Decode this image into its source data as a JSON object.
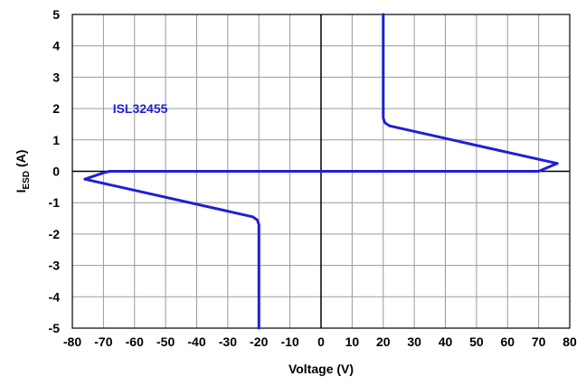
{
  "chart_data": {
    "type": "line",
    "xlabel": "Voltage (V)",
    "ylabel": {
      "main": "I",
      "sub": "ESD",
      "unit": " (A)"
    },
    "xlim": [
      -80,
      80
    ],
    "ylim": [
      -5,
      5
    ],
    "xticks": [
      -80,
      -70,
      -60,
      -50,
      -40,
      -30,
      -20,
      -10,
      0,
      10,
      20,
      30,
      40,
      50,
      60,
      70,
      80
    ],
    "yticks": [
      -5,
      -4,
      -3,
      -2,
      -1,
      0,
      1,
      2,
      3,
      4,
      5
    ],
    "grid": true,
    "annotations": [
      {
        "text": "ISL32455",
        "x": -67,
        "y": 2,
        "color": "#1f1fd6"
      }
    ],
    "series": [
      {
        "color": "#1f1fd6",
        "x": [
          20,
          20,
          20.5,
          22,
          76,
          70,
          0,
          -68,
          -70,
          -76,
          -22,
          -20.5,
          -20,
          -20
        ],
        "y": [
          5,
          1.7,
          1.55,
          1.45,
          0.25,
          0,
          0,
          0,
          -0.05,
          -0.25,
          -1.45,
          -1.55,
          -1.7,
          -5
        ]
      }
    ]
  }
}
